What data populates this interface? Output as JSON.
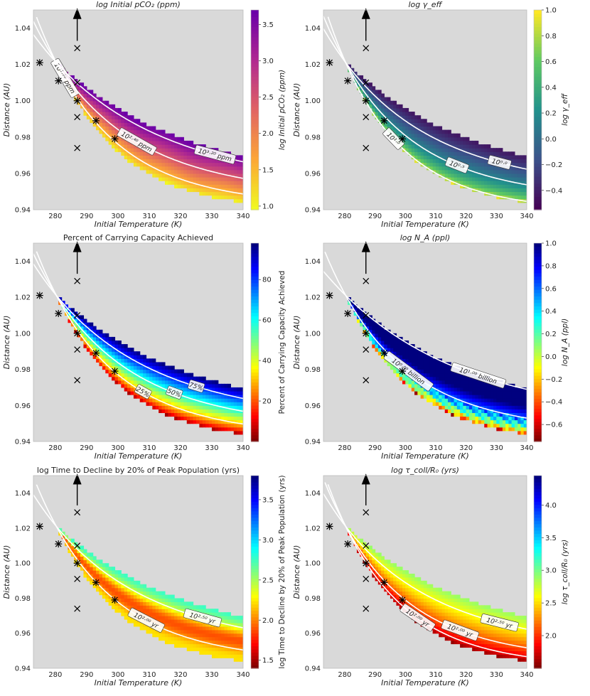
{
  "figure": {
    "xlabel": "Initial Temperature (K)",
    "ylabel": "Distance (AU)",
    "xticks": [
      "280",
      "290",
      "300",
      "310",
      "320",
      "330",
      "340"
    ],
    "yticks": [
      "0.94",
      "0.96",
      "0.98",
      "1.00",
      "1.02",
      "1.04"
    ]
  },
  "chart_data": [
    {
      "id": "p1",
      "type": "heatmap",
      "title": "log Initial pCO₂ (ppm)",
      "xlabel": "Initial Temperature (K)",
      "ylabel": "Distance (AU)",
      "xlim": [
        273,
        340
      ],
      "ylim": [
        0.94,
        1.05
      ],
      "colormap": "plasma_r",
      "colorbar": {
        "label": "log Initial pCO₂ (ppm)",
        "range": [
          0.95,
          3.7
        ],
        "ticks": [
          "1.0",
          "1.5",
          "2.0",
          "2.5",
          "3.0",
          "3.5"
        ]
      },
      "contours": [
        {
          "label": "10¹·⁶⁰ ppm",
          "level": 1.6
        },
        {
          "label": "10²·⁴⁰ ppm",
          "level": 2.4
        },
        {
          "label": "10³·²⁰ ppm",
          "level": 3.2
        }
      ],
      "value_range": [
        1.0,
        3.7
      ]
    },
    {
      "id": "p2",
      "type": "heatmap",
      "title": "log γ_eff",
      "xlabel": "Initial Temperature (K)",
      "ylabel": "Distance (AU)",
      "xlim": [
        273,
        340
      ],
      "ylim": [
        0.94,
        1.05
      ],
      "colormap": "viridis",
      "colorbar": {
        "label": "log γ_eff",
        "range": [
          -0.55,
          1.0
        ],
        "ticks": [
          "−0.4",
          "−0.2",
          "0.0",
          "0.2",
          "0.4",
          "0.6",
          "0.8",
          "1.0"
        ]
      },
      "contours": [
        {
          "label": "10¹·⁰",
          "level": 1.0
        },
        {
          "label": "10⁰·⁵",
          "level": 0.5
        },
        {
          "label": "10⁰·⁰",
          "level": 0.0
        }
      ],
      "value_range": [
        -0.45,
        1.0
      ]
    },
    {
      "id": "p3",
      "type": "heatmap",
      "title": "Percent of Carrying Capacity Achieved",
      "xlabel": "Initial Temperature (K)",
      "ylabel": "Distance (AU)",
      "xlim": [
        273,
        340
      ],
      "ylim": [
        0.94,
        1.05
      ],
      "colormap": "jet_r",
      "colorbar": {
        "label": "Percent of Carrying Capacity Achieved",
        "range": [
          0,
          98
        ],
        "ticks": [
          "20",
          "40",
          "60",
          "80"
        ]
      },
      "contours": [
        {
          "label": "25%",
          "level": 25
        },
        {
          "label": "50%",
          "level": 50
        },
        {
          "label": "75%",
          "level": 75
        }
      ],
      "value_range": [
        2,
        98
      ]
    },
    {
      "id": "p4",
      "type": "heatmap",
      "title": "log N_A (ppl)",
      "xlabel": "Initial Temperature (K)",
      "ylabel": "Distance (AU)",
      "xlim": [
        273,
        340
      ],
      "ylim": [
        0.94,
        1.05
      ],
      "colormap": "jet_r",
      "colorbar": {
        "label": "log N_A (ppl)",
        "range": [
          -0.75,
          1.0
        ],
        "ticks": [
          "−0.6",
          "−0.4",
          "−0.2",
          "0.0",
          "0.2",
          "0.4",
          "0.6",
          "0.8",
          "1.0"
        ]
      },
      "contours": [
        {
          "label": "10⁰·⁰⁰ billion",
          "level": 0.0
        },
        {
          "label": "10¹·⁰⁰ billion",
          "level": 1.0
        }
      ],
      "value_range": [
        -0.75,
        1.0
      ]
    },
    {
      "id": "p5",
      "type": "heatmap",
      "title": "log Time to Decline by 20% of Peak Population (yrs)",
      "xlabel": "Initial Temperature (K)",
      "ylabel": "Distance (AU)",
      "xlim": [
        273,
        340
      ],
      "ylim": [
        0.94,
        1.05
      ],
      "colormap": "jet_r",
      "colorbar": {
        "label": "log Time to Decline by 20% of Peak Population (yrs)",
        "range": [
          1.4,
          3.8
        ],
        "ticks": [
          "1.5",
          "2.0",
          "2.5",
          "3.0",
          "3.5"
        ]
      },
      "contours": [
        {
          "label": "10²·⁰⁰ yr",
          "level": 2.0
        },
        {
          "label": "10²·⁵⁰ yr",
          "level": 2.5
        }
      ],
      "value_range": [
        1.5,
        2.85
      ]
    },
    {
      "id": "p6",
      "type": "heatmap",
      "title": "log τ_coll/R₀ (yrs)",
      "xlabel": "Initial Temperature (K)",
      "ylabel": "Distance (AU)",
      "xlim": [
        273,
        340
      ],
      "ylim": [
        0.94,
        1.05
      ],
      "colormap": "jet_r",
      "colorbar": {
        "label": "log τ_coll/R₀ (yrs)",
        "range": [
          1.5,
          4.45
        ],
        "ticks": [
          "2.0",
          "2.5",
          "3.0",
          "3.5",
          "4.0"
        ]
      },
      "contours": [
        {
          "label": "10²·⁰⁰ yr",
          "level": 2.0
        },
        {
          "label": "10²·⁵⁰ yr",
          "level": 2.5
        },
        {
          "label": "10²·⁰⁰ yr",
          "level": 2.0
        }
      ],
      "value_range": [
        1.55,
        2.9
      ]
    }
  ],
  "markers": {
    "points": [
      [
        275,
        1.021
      ],
      [
        281,
        1.011
      ],
      [
        287,
        1.029
      ],
      [
        287,
        1.01
      ],
      [
        287,
        1.0
      ],
      [
        287,
        0.991
      ],
      [
        287,
        0.974
      ],
      [
        293,
        0.989
      ],
      [
        299,
        0.979
      ]
    ],
    "arrow_at": [
      287,
      1.049
    ]
  },
  "colors": {
    "background_mask": "#d9d9d9",
    "contour": "#ffffff",
    "marker": "#000000"
  }
}
